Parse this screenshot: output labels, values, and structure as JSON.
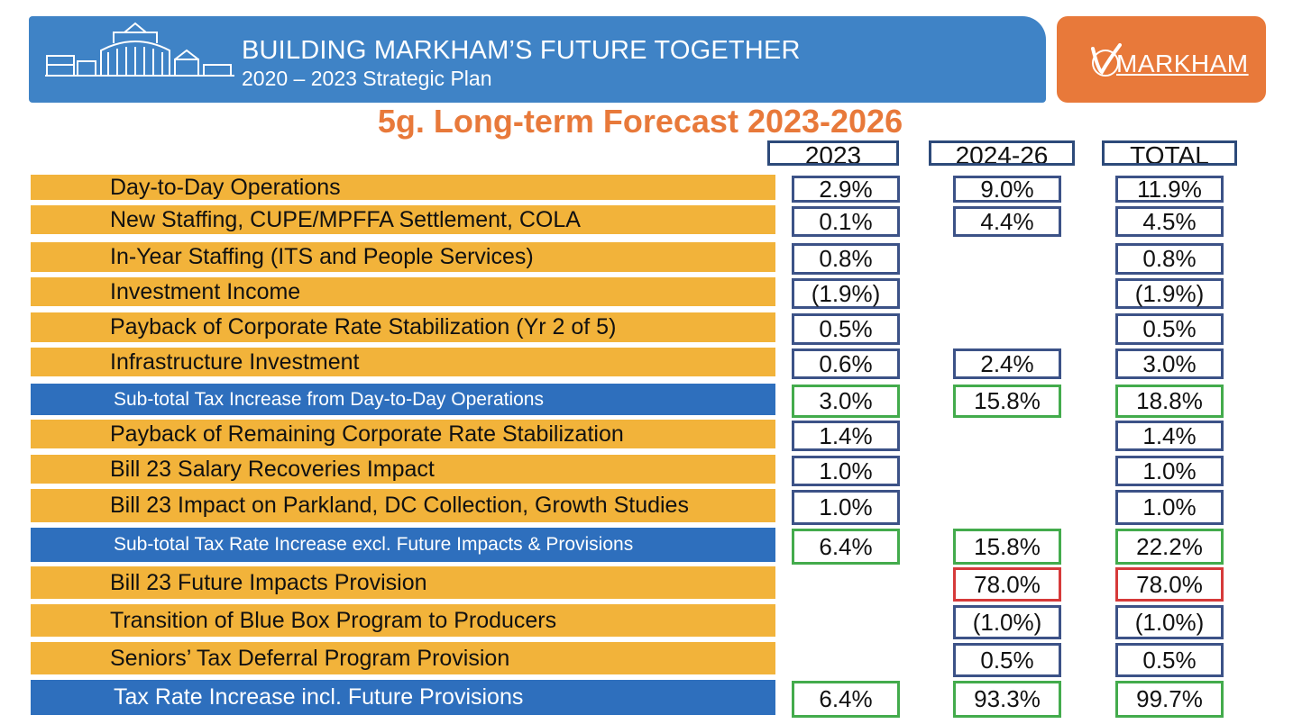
{
  "header": {
    "title": "BUILDING MARKHAM’S FUTURE TOGETHER",
    "subtitle": "2020 – 2023 Strategic Plan",
    "logo_text": "MARKHAM"
  },
  "slide_title": "5g. Long-term Forecast 2023-2026",
  "columns": [
    "2023",
    "2024-26",
    "TOTAL"
  ],
  "rows": [
    {
      "label": "Day-to-Day Operations",
      "type": "item",
      "v2023": "2.9%",
      "v2024": "9.0%",
      "total": "11.9%"
    },
    {
      "label": "New Staffing, CUPE/MPFFA Settlement, COLA",
      "type": "item",
      "v2023": "0.1%",
      "v2024": "4.4%",
      "total": "4.5%"
    },
    {
      "label": "In-Year Staffing (ITS and People Services)",
      "type": "item",
      "v2023": "0.8%",
      "v2024": "",
      "total": "0.8%"
    },
    {
      "label": "Investment Income",
      "type": "item",
      "v2023": "(1.9%)",
      "v2024": "",
      "total": "(1.9%)"
    },
    {
      "label": "Payback of Corporate Rate Stabilization (Yr 2 of 5)",
      "type": "item",
      "v2023": "0.5%",
      "v2024": "",
      "total": "0.5%"
    },
    {
      "label": "Infrastructure Investment",
      "type": "item",
      "v2023": "0.6%",
      "v2024": "2.4%",
      "total": "3.0%"
    },
    {
      "label": "Sub-total Tax Increase from Day-to-Day Operations",
      "type": "subtotal",
      "v2023": "3.0%",
      "v2024": "15.8%",
      "total": "18.8%"
    },
    {
      "label": "Payback of Remaining Corporate Rate Stabilization",
      "type": "item",
      "v2023": "1.4%",
      "v2024": "",
      "total": "1.4%"
    },
    {
      "label": "Bill 23 Salary Recoveries Impact",
      "type": "item",
      "v2023": "1.0%",
      "v2024": "",
      "total": "1.0%"
    },
    {
      "label": "Bill 23 Impact on Parkland, DC Collection, Growth Studies",
      "type": "item",
      "v2023": "1.0%",
      "v2024": "",
      "total": "1.0%"
    },
    {
      "label": "Sub-total Tax Rate Increase excl. Future Impacts & Provisions",
      "type": "subtotal",
      "v2023": "6.4%",
      "v2024": "15.8%",
      "total": "22.2%"
    },
    {
      "label": "Bill 23 Future Impacts Provision",
      "type": "item",
      "v2023": "",
      "v2024": "78.0%",
      "total": "78.0%"
    },
    {
      "label": "Transition of Blue Box Program to Producers",
      "type": "item",
      "v2023": "",
      "v2024": "(1.0%)",
      "total": "(1.0%)"
    },
    {
      "label": "Seniors’ Tax Deferral Program Provision",
      "type": "item",
      "v2023": "",
      "v2024": "0.5%",
      "total": "0.5%"
    },
    {
      "label": "Tax Rate Increase incl. Future Provisions",
      "type": "total",
      "v2023": "6.4%",
      "v2024": "93.3%",
      "total": "99.7%"
    }
  ],
  "colors": {
    "banner_blue": "#3f83c6",
    "logo_orange": "#e8793a",
    "row_orange": "#f2b33a",
    "row_blue": "#2e6fbd",
    "border_navy": "#3c5287",
    "border_green": "#43ab4c",
    "border_red": "#d63a3a"
  }
}
